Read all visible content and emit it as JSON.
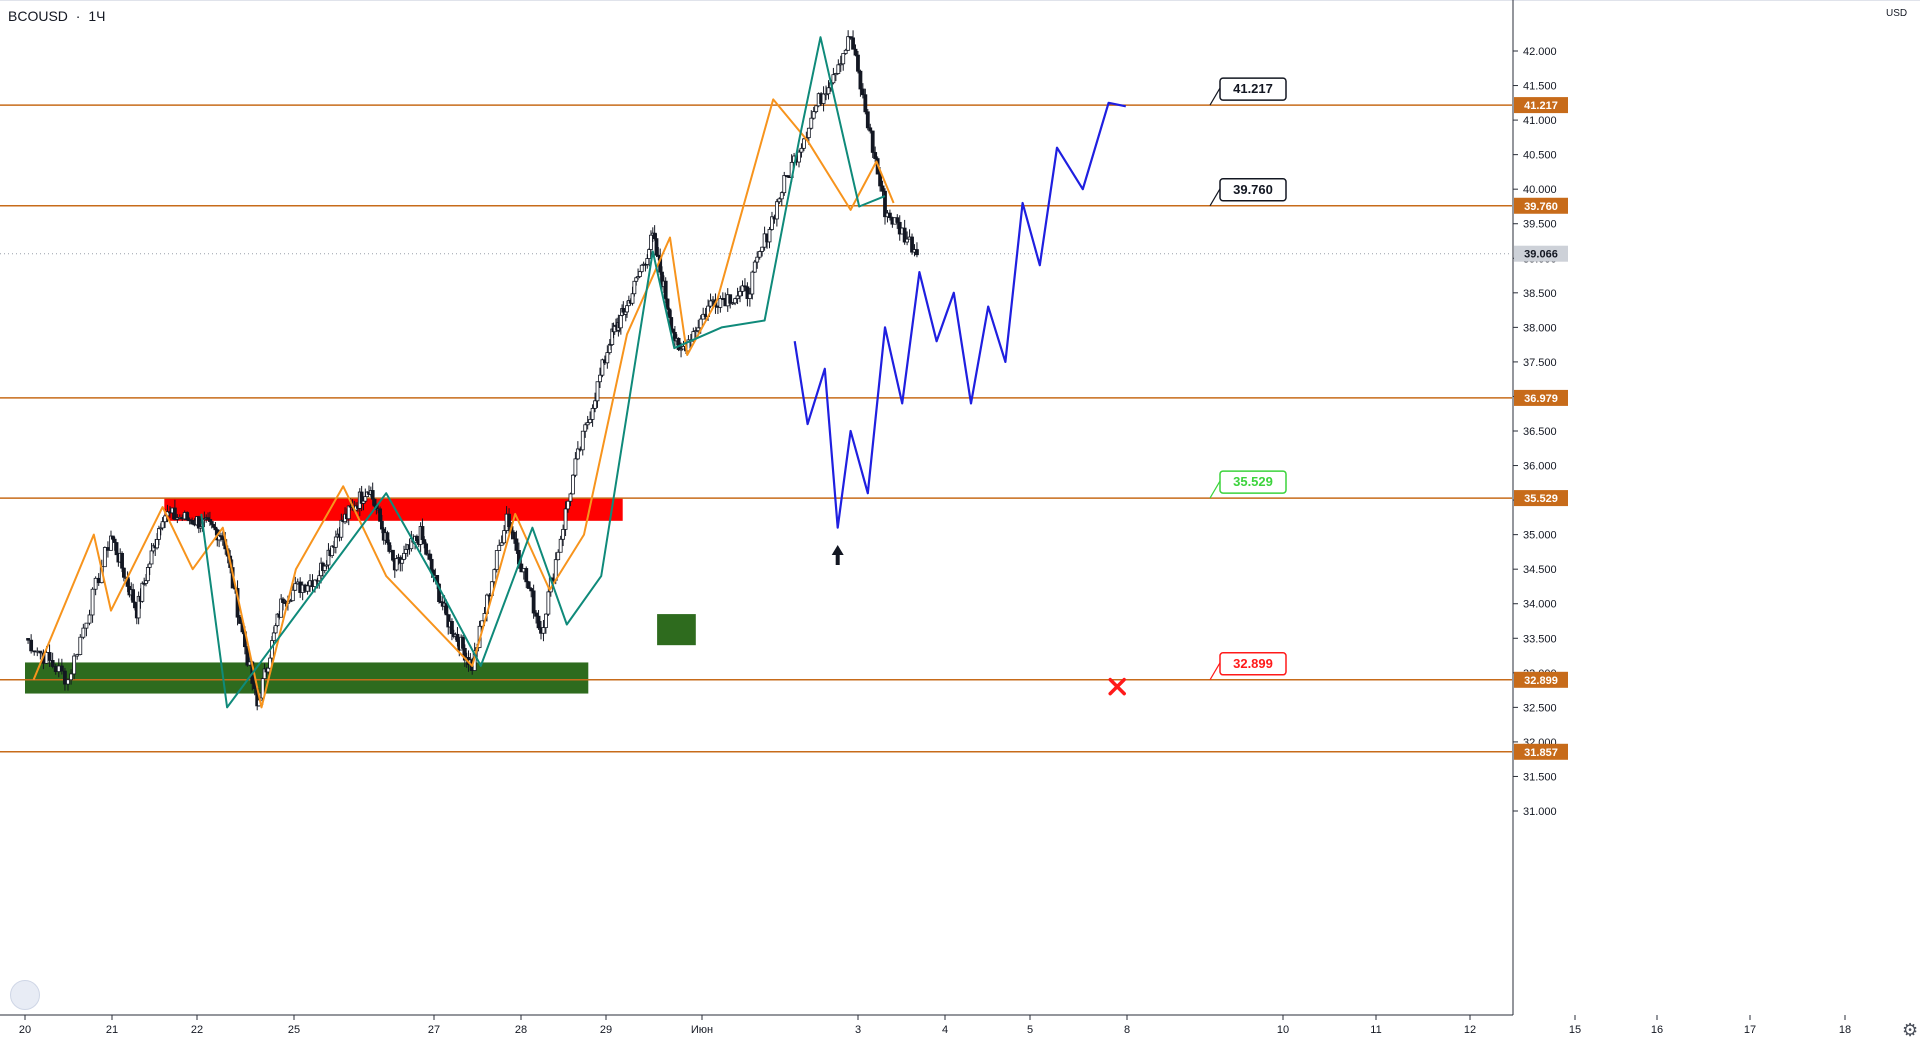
{
  "header": {
    "symbol": "BCOUSD",
    "separator": "·",
    "interval": "1Ч"
  },
  "currency": "USD",
  "colors": {
    "level_line": "#c76b1a",
    "candle": "#131722",
    "zigzag_orange": "#f7941d",
    "zigzag_teal": "#0f8a7a",
    "projection": "#1f1fe0",
    "supply_zone": "#ff0000",
    "demand_zone": "#2e6b1e",
    "label_black": "#131722",
    "label_green": "#3cd33c",
    "label_red": "#ff1a1a",
    "current_price_bg": "#cdd1d8"
  },
  "chart_data": {
    "type": "line",
    "title": "",
    "xlabel": "",
    "ylabel": "",
    "ylim": [
      30.7,
      42.55
    ],
    "x_ticks": [
      "20",
      "21",
      "22",
      "25",
      "27",
      "28",
      "29",
      "Июн",
      "3",
      "4",
      "5",
      "8",
      "10",
      "11",
      "12",
      "15",
      "16",
      "17",
      "18"
    ],
    "y_ticks": [
      "31.000",
      "31.500",
      "32.000",
      "32.500",
      "33.000",
      "33.500",
      "34.000",
      "34.500",
      "35.000",
      "35.500",
      "36.000",
      "36.500",
      "37.000",
      "37.500",
      "38.000",
      "38.500",
      "39.000",
      "39.500",
      "40.000",
      "40.500",
      "41.000",
      "41.500",
      "42.000"
    ],
    "levels": [
      {
        "label": "41.217",
        "value": 41.217
      },
      {
        "label": "39.760",
        "value": 39.76
      },
      {
        "label": "36.979",
        "value": 36.979
      },
      {
        "label": "35.529",
        "value": 35.529
      },
      {
        "label": "32.899",
        "value": 32.899
      },
      {
        "label": "31.857",
        "value": 31.857
      }
    ],
    "current_price": {
      "label": "39.066",
      "value": 39.066
    },
    "price_series": {
      "x": [
        0,
        0.5,
        1,
        1.3,
        1.6,
        2,
        2.3,
        2.7,
        3,
        3.4,
        3.7,
        4,
        4.3,
        4.6,
        4.9,
        5.2,
        5.6,
        6,
        6.4,
        6.8,
        7,
        7.3,
        7.6,
        8,
        8.4,
        8.8,
        9.2,
        9.6,
        10,
        10.4
      ],
      "y": [
        33.5,
        32.9,
        35.0,
        33.9,
        35.3,
        35.2,
        35.0,
        32.5,
        34.1,
        34.4,
        35.2,
        35.7,
        34.5,
        35.0,
        33.8,
        33.1,
        35.3,
        33.6,
        36.0,
        37.8,
        38.3,
        39.3,
        37.6,
        38.4,
        38.5,
        40.0,
        41.2,
        42.2,
        39.7,
        39.06
      ]
    },
    "zigzag_orange": {
      "x": [
        0.1,
        0.8,
        1.0,
        1.6,
        1.95,
        2.3,
        2.75,
        3.15,
        3.7,
        4.2,
        5.2,
        5.7,
        6.1,
        6.5,
        7.0,
        7.5,
        7.7,
        8.05,
        8.7,
        9.1,
        9.6,
        9.9,
        10.1
      ],
      "y": [
        32.9,
        35.0,
        33.9,
        35.4,
        34.5,
        35.1,
        32.5,
        34.5,
        35.7,
        34.4,
        33.1,
        35.3,
        34.2,
        35.0,
        37.9,
        39.3,
        37.6,
        38.4,
        41.3,
        40.7,
        39.7,
        40.4,
        39.8
      ]
    },
    "zigzag_teal": {
      "x": [
        2.05,
        2.35,
        4.2,
        4.7,
        5.3,
        5.9,
        6.3,
        6.7,
        7.3,
        7.55,
        8.1,
        8.6,
        9.0,
        9.25,
        9.7,
        10.0
      ],
      "y": [
        35.3,
        32.5,
        35.6,
        34.5,
        33.1,
        35.1,
        33.7,
        34.4,
        39.1,
        37.7,
        38.0,
        38.1,
        40.7,
        42.2,
        39.75,
        39.9
      ]
    },
    "projection": {
      "x": [
        8.95,
        9.1,
        9.3,
        9.45,
        9.6,
        9.8,
        10.0,
        10.2,
        10.4,
        10.6,
        10.8,
        11.0,
        11.2,
        11.4,
        11.6,
        11.8,
        12.0,
        12.3,
        12.6,
        12.8
      ],
      "y": [
        37.8,
        36.6,
        37.4,
        35.1,
        36.5,
        35.6,
        38.0,
        36.9,
        38.8,
        37.8,
        38.5,
        36.9,
        38.3,
        37.5,
        39.8,
        38.9,
        40.6,
        40.0,
        41.25,
        41.2
      ]
    },
    "zones": [
      {
        "kind": "supply",
        "x0": 1.62,
        "x1": 6.95,
        "y0": 35.2,
        "y1": 35.53
      },
      {
        "kind": "demand",
        "x0": 0.0,
        "x1": 6.55,
        "y0": 32.7,
        "y1": 33.15
      },
      {
        "kind": "demand",
        "x0": 7.35,
        "x1": 7.8,
        "y0": 33.4,
        "y1": 33.85
      }
    ],
    "callouts": [
      {
        "text": "41.217",
        "value": 41.217,
        "style": "black"
      },
      {
        "text": "39.760",
        "value": 39.76,
        "style": "black"
      },
      {
        "text": "35.529",
        "value": 35.529,
        "style": "green"
      },
      {
        "text": "32.899",
        "value": 32.899,
        "style": "red"
      }
    ],
    "markers": [
      {
        "kind": "up-arrow",
        "x": 9.45,
        "y": 34.85
      },
      {
        "kind": "cross",
        "x": 12.7,
        "y": 32.8
      }
    ]
  }
}
